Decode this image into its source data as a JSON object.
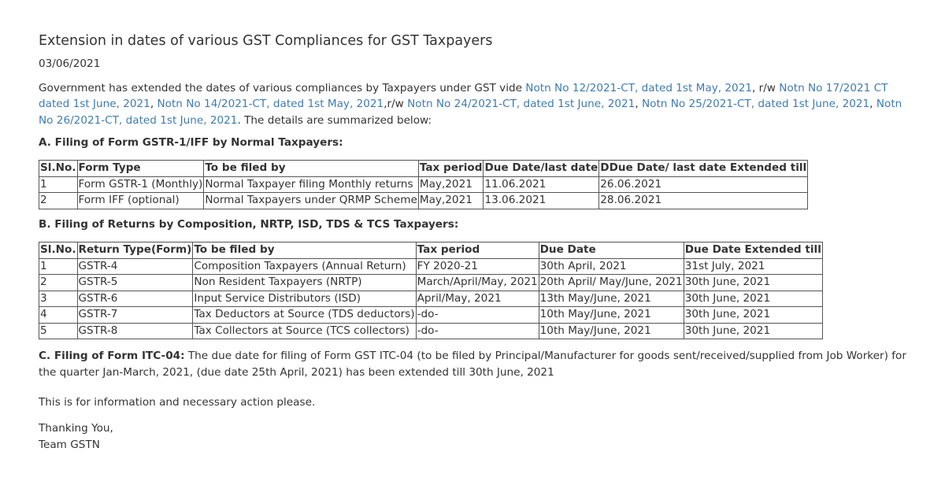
{
  "title": "Extension in dates of various GST Compliances for GST Taxpayers",
  "date": "03/06/2021",
  "intro": {
    "t1": "Government has extended the dates of various compliances by Taxpayers under GST vide ",
    "l1": "Notn No 12/2021-CT, dated 1st May, 2021",
    "t2": ", r/w ",
    "l2": "Notn No 17/2021 CT dated 1st June, 2021",
    "t3": ", ",
    "l3": "Notn No 14/2021-CT, dated 1st May, 2021",
    "t4": ",r/w ",
    "l4": "Notn No 24/2021-CT, dated 1st June, 2021",
    "t5": ", ",
    "l5": "Notn No 25/2021-CT, dated 1st June, 2021",
    "t6": ", ",
    "l6": "Notn No 26/2021-CT, dated 1st June, 2021",
    "t7": ". The details are summarized below:"
  },
  "sectionA": {
    "heading": "A. Filing of Form GSTR-1/IFF by Normal Taxpayers:",
    "headers": [
      "Sl.No.",
      "Form Type",
      "To be filed by",
      "Tax period",
      "Due Date/last date",
      "DDue Date/ last date Extended till"
    ],
    "rows": [
      [
        "1",
        "Form GSTR-1 (Monthly)",
        "Normal Taxpayer filing Monthly returns",
        "May,2021",
        "11.06.2021",
        "26.06.2021"
      ],
      [
        "2",
        "Form IFF (optional)",
        "Normal Taxpayers under QRMP Scheme",
        "May,2021",
        "13.06.2021",
        "28.06.2021"
      ]
    ]
  },
  "sectionB": {
    "heading": "B. Filing of Returns by Composition, NRTP, ISD, TDS & TCS Taxpayers:",
    "headers": [
      "Sl.No.",
      "Return Type(Form)",
      "To be filed by",
      "Tax period",
      "Due Date",
      "Due Date Extended till"
    ],
    "rows": [
      [
        "1",
        "GSTR-4",
        "Composition Taxpayers (Annual Return)",
        "FY 2020-21",
        "30th April, 2021",
        "31st July, 2021"
      ],
      [
        "2",
        "GSTR-5",
        "Non Resident Taxpayers (NRTP)",
        "March/April/May, 2021",
        "20th April/ May/June, 2021",
        "30th June, 2021"
      ],
      [
        "3",
        "GSTR-6",
        "Input Service Distributors (ISD)",
        "April/May, 2021",
        "13th May/June, 2021",
        "30th June, 2021"
      ],
      [
        "4",
        "GSTR-7",
        "Tax Deductors at Source (TDS deductors)",
        "-do-",
        "10th May/June, 2021",
        "30th June, 2021"
      ],
      [
        "5",
        "GSTR-8",
        "Tax Collectors at Source (TCS collectors)",
        "-do-",
        "10th May/June, 2021",
        "30th June, 2021"
      ]
    ]
  },
  "sectionC": {
    "heading": "C. Filing of Form ITC-04:",
    "text": " The due date for filing of Form GST ITC-04 (to be filed by Principal/Manufacturer for goods sent/received/supplied from Job Worker) for the quarter Jan-March, 2021, (due date 25th April, 2021) has been extended till 30th June, 2021"
  },
  "closing": "This is for information and necessary action please.",
  "thanks": {
    "line1": "Thanking You,",
    "line2": "Team GSTN"
  },
  "colors": {
    "link": "#3e7cb1",
    "text": "#333333"
  }
}
